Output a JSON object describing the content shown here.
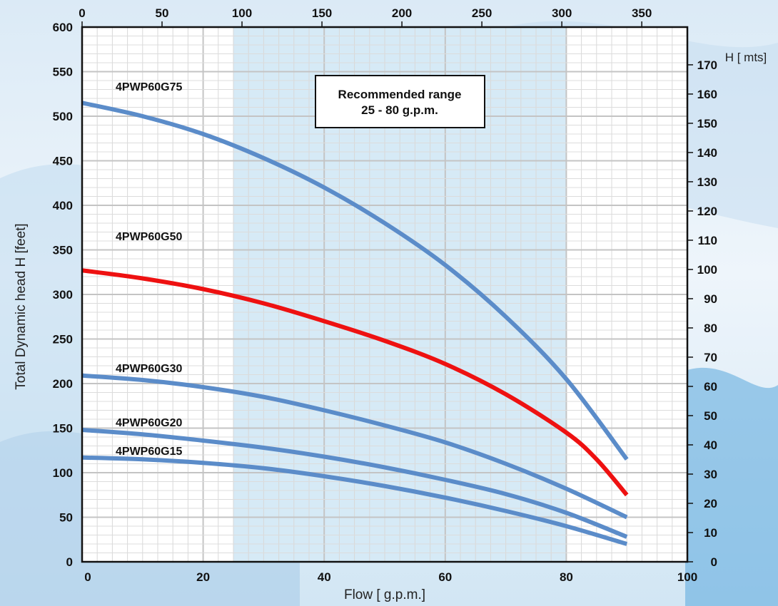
{
  "chart_data": {
    "type": "line",
    "xlabel": "Flow [ g.p.m.]",
    "ylabel": "Total Dynamic head H [feet]",
    "y2label": "H [ mts]",
    "xlim": [
      0,
      100
    ],
    "ylim": [
      0,
      600
    ],
    "x2lim": [
      0,
      378.5
    ],
    "y2lim": [
      0,
      182.9
    ],
    "x_ticks": [
      "0",
      "20",
      "40",
      "60",
      "80",
      "100"
    ],
    "y_ticks": [
      "0",
      "50",
      "100",
      "150",
      "200",
      "250",
      "300",
      "350",
      "400",
      "450",
      "500",
      "550",
      "600"
    ],
    "x2_ticks": [
      "0",
      "50",
      "100",
      "150",
      "200",
      "250",
      "300",
      "350"
    ],
    "y2_ticks": [
      "0",
      "10",
      "20",
      "30",
      "40",
      "50",
      "60",
      "70",
      "80",
      "90",
      "100",
      "110",
      "120",
      "130",
      "140",
      "150",
      "160",
      "170"
    ],
    "grid": true,
    "recommended_range": {
      "x": [
        25,
        80
      ],
      "line1": "Recommended range",
      "line2": "25 - 80 g.p.m.",
      "color": "#d6eaf6"
    },
    "series": [
      {
        "name": "4PWP60G75",
        "color": "#5b8cc9",
        "x": [
          0,
          10,
          20,
          30,
          40,
          50,
          60,
          70,
          80,
          90
        ],
        "y": [
          515,
          500,
          480,
          453,
          420,
          380,
          333,
          275,
          205,
          115
        ]
      },
      {
        "name": "4PWP60G50",
        "color": "#ee1111",
        "x": [
          0,
          10,
          20,
          30,
          40,
          50,
          60,
          70,
          80,
          85,
          90
        ],
        "y": [
          327,
          318,
          306,
          290,
          270,
          248,
          222,
          188,
          145,
          115,
          75
        ]
      },
      {
        "name": "4PWP60G30",
        "color": "#5b8cc9",
        "x": [
          0,
          10,
          20,
          30,
          40,
          50,
          60,
          70,
          80,
          90
        ],
        "y": [
          209,
          204,
          196,
          185,
          170,
          153,
          134,
          110,
          82,
          50
        ]
      },
      {
        "name": "4PWP60G20",
        "color": "#5b8cc9",
        "x": [
          0,
          10,
          20,
          30,
          40,
          50,
          60,
          70,
          80,
          90
        ],
        "y": [
          148,
          143,
          136,
          128,
          118,
          106,
          92,
          76,
          55,
          28
        ]
      },
      {
        "name": "4PWP60G15",
        "color": "#5b8cc9",
        "x": [
          0,
          10,
          20,
          30,
          40,
          50,
          60,
          70,
          80,
          90
        ],
        "y": [
          117,
          115,
          111,
          105,
          96,
          85,
          72,
          57,
          40,
          20
        ]
      }
    ]
  }
}
